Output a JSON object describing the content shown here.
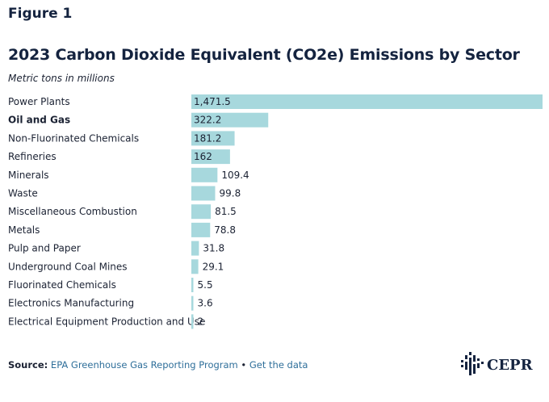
{
  "figure_label": "Figure 1",
  "chart_data": {
    "type": "bar",
    "orientation": "horizontal",
    "title": "2023 Carbon Dioxide Equivalent (CO2e) Emissions by Sector",
    "subtitle": "Metric tons in millions",
    "categories": [
      "Power Plants",
      "Oil and Gas",
      "Non-Fluorinated Chemicals",
      "Refineries",
      "Minerals",
      "Waste",
      "Miscellaneous Combustion",
      "Metals",
      "Pulp and Paper",
      "Underground Coal Mines",
      "Fluorinated Chemicals",
      "Electronics Manufacturing",
      "Electrical Equipment Production and Use"
    ],
    "values": [
      1471.5,
      322.2,
      181.2,
      162,
      109.4,
      99.8,
      81.5,
      78.8,
      31.8,
      29.1,
      5.5,
      3.6,
      2
    ],
    "data_labels": [
      "1,471.5",
      "322.2",
      "181.2",
      "162",
      "109.4",
      "99.8",
      "81.5",
      "78.8",
      "31.8",
      "29.1",
      "5.5",
      "3.6",
      "2"
    ],
    "highlighted_category": "Oil and Gas",
    "bar_color": "#a7d8dd",
    "grid": false,
    "legend": "none"
  },
  "source": {
    "label": "Source:",
    "link_text": "EPA Greenhouse Gas Reporting Program",
    "separator": "•",
    "data_link_text": "Get the data"
  },
  "logo": {
    "text": "CEPR",
    "color": "#14233f"
  }
}
